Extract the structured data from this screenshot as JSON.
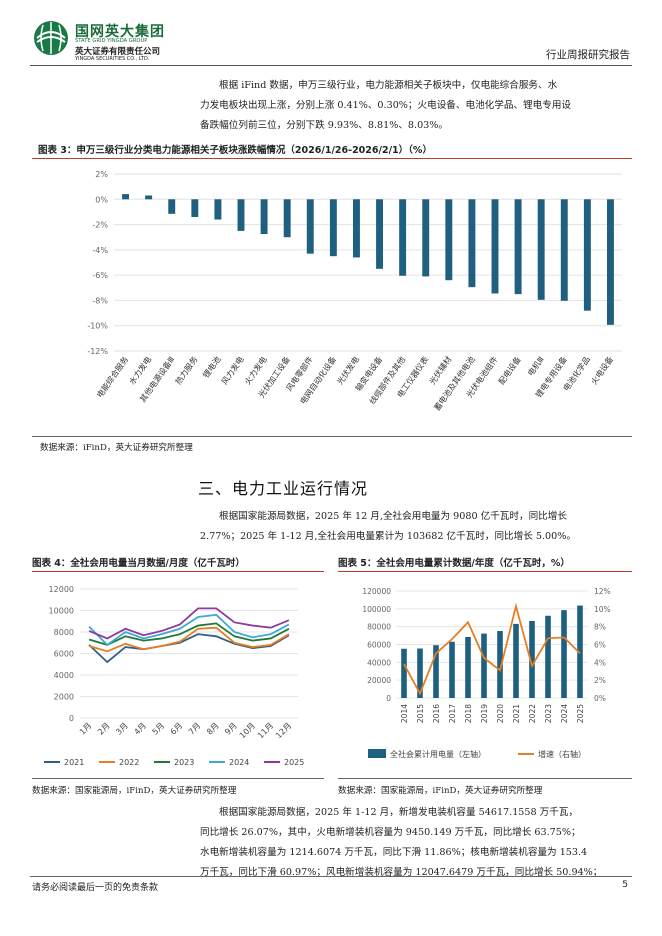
{
  "header": {
    "logo_cn": "国网英大集团",
    "logo_en": "STATE GRID YINGDA GROUP",
    "company_cn": "英大证券有限责任公司",
    "company_en": "YINGDA SECURITIES CO., LTD.",
    "report_type": "行业周报研究报告"
  },
  "intro_paragraph": [
    "根据 iFind 数据，申万三级行业，电力能源相关子板块中，仅电能综合服务、水",
    "力发电板块出现上涨，分别上涨 0.41%、0.30%；火电设备、电池化学品、锂电专用设",
    "备跌幅位列前三位，分别下跌 9.93%、8.81%、8.03%。"
  ],
  "figure3": {
    "title": "图表 3：申万三级行业分类电力能源相关子板块涨跌幅情况（2026/1/26-2026/2/1）（%）",
    "source": "数据来源：iFinD，英大证券研究所整理"
  },
  "section3": {
    "title": "三、电力工业运行情况",
    "paragraph": [
      "根据国家能源局数据，2025 年 12 月,全社会用电量为 9080 亿千瓦时，同比增长",
      "2.77%；2025 年 1-12 月,全社会用电量累计为 103682 亿千瓦时，同比增长 5.00%。"
    ]
  },
  "figure4": {
    "title": "图表 4：全社会用电量当月数据/月度（亿千瓦时）",
    "source": "数据来源：国家能源局，iFinD，英大证券研究所整理"
  },
  "figure5": {
    "title": "图表 5：全社会用电量累计数据/年度（亿千瓦时，%）",
    "source": "数据来源：国家能源局，iFinD，英大证券研究所整理"
  },
  "closing_paragraph": [
    "根据国家能源局数据，2025 年 1-12 月，新增发电装机容量 54617.1558 万千瓦，",
    "同比增长 26.07%，其中，火电新增装机容量为 9450.149 万千瓦，同比增长 63.75%；",
    "水电新增装机容量为 1214.6074 万千瓦，同比下滑 11.86%；核电新增装机容量为 153.4",
    "万千瓦，同比下滑 60.97%；风电新增装机容量为 12047.6479 万千瓦，同比增长 50.94%；"
  ],
  "footer": {
    "disclaimer": "请务必阅读最后一页的免责条款",
    "page_number": "5"
  },
  "colors": {
    "bar_blue": "#1f5f7f",
    "accent_red": "#c0392b",
    "brand_green": "#1a6b3a",
    "growth_orange": "#e67e22"
  },
  "chart_data": [
    {
      "id": "figure3",
      "type": "bar",
      "categories": [
        "电能综合服务",
        "水力发电",
        "其他电源设备Ⅲ",
        "热力服务",
        "锂电池",
        "风力发电",
        "火力发电",
        "光伏加工设备",
        "风电零部件",
        "电网自动化设备",
        "光伏发电",
        "输变电设备",
        "线缆部件及其他",
        "电工仪器仪表",
        "光伏辅材",
        "蓄电池及其他电池",
        "光伏电池组件",
        "配电设备",
        "电机Ⅲ",
        "锂电专用设备",
        "电池化学品",
        "火电设备"
      ],
      "values": [
        0.41,
        0.3,
        -1.15,
        -1.4,
        -1.6,
        -2.5,
        -2.75,
        -3.0,
        -4.3,
        -4.5,
        -4.6,
        -5.5,
        -6.05,
        -6.1,
        -6.4,
        -6.95,
        -7.45,
        -7.5,
        -7.95,
        -8.03,
        -8.81,
        -9.93
      ],
      "ylim": [
        -12,
        2
      ],
      "yticks": [
        2,
        0,
        -2,
        -4,
        -6,
        -8,
        -10,
        -12
      ],
      "ytick_suffix": "%",
      "grid": true,
      "legend": "none"
    },
    {
      "id": "figure4",
      "type": "line",
      "categories": [
        "1月",
        "2月",
        "3月",
        "4月",
        "5月",
        "6月",
        "7月",
        "8月",
        "9月",
        "10月",
        "11月",
        "12月"
      ],
      "series": [
        {
          "name": "2021",
          "color": "#2e5f8a",
          "values": [
            6800,
            5200,
            6600,
            6400,
            6700,
            7000,
            7800,
            7600,
            6900,
            6500,
            6700,
            7700
          ]
        },
        {
          "name": "2022",
          "color": "#e67e22",
          "values": [
            6700,
            6200,
            6900,
            6400,
            6700,
            7100,
            8300,
            8400,
            7000,
            6600,
            6800,
            7800
          ]
        },
        {
          "name": "2023",
          "color": "#1f7a3a",
          "values": [
            7300,
            6800,
            7600,
            7200,
            7400,
            7800,
            8600,
            8800,
            7600,
            7200,
            7400,
            8300
          ]
        },
        {
          "name": "2024",
          "color": "#3fa9d6",
          "values": [
            8500,
            6800,
            8000,
            7400,
            7800,
            8300,
            9400,
            9600,
            8000,
            7500,
            7800,
            8700
          ]
        },
        {
          "name": "2025",
          "color": "#8e3a9d",
          "values": [
            8100,
            7400,
            8300,
            7700,
            8100,
            8700,
            10200,
            10200,
            8900,
            8600,
            8400,
            9100
          ]
        }
      ],
      "ylim": [
        0,
        12000
      ],
      "yticks": [
        0,
        2000,
        4000,
        6000,
        8000,
        10000,
        12000
      ],
      "legend": "bottom",
      "grid": true
    },
    {
      "id": "figure5",
      "type": "bar+line",
      "categories": [
        "2014",
        "2015",
        "2016",
        "2017",
        "2018",
        "2019",
        "2020",
        "2021",
        "2022",
        "2023",
        "2024",
        "2025"
      ],
      "series": [
        {
          "name": "全社会累计用电量（左轴）",
          "type": "bar",
          "axis": "left",
          "color": "#1f5f7f",
          "values": [
            55233,
            55500,
            59198,
            63077,
            68449,
            72255,
            75110,
            83128,
            86372,
            92241,
            98521,
            103682
          ]
        },
        {
          "name": "增速（右轴）",
          "type": "line",
          "axis": "right",
          "color": "#e67e22",
          "values": [
            3.8,
            0.5,
            5.0,
            6.6,
            8.5,
            4.5,
            3.1,
            10.3,
            3.6,
            6.7,
            6.8,
            5.0
          ]
        }
      ],
      "ylim_left": [
        0,
        120000
      ],
      "yticks_left": [
        0,
        20000,
        40000,
        60000,
        80000,
        100000,
        120000
      ],
      "ylim_right": [
        0,
        12
      ],
      "yticks_right": [
        "0%",
        "2%",
        "4%",
        "6%",
        "8%",
        "10%",
        "12%"
      ],
      "legend": "bottom",
      "grid": true
    }
  ]
}
